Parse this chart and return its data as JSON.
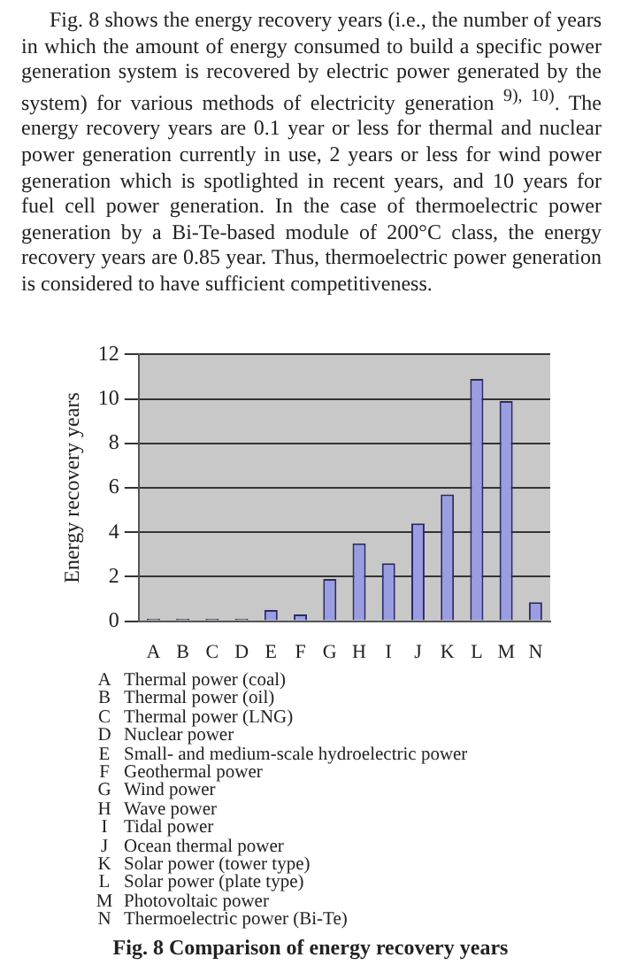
{
  "chart_data": {
    "type": "bar",
    "title": "Fig. 8  Comparison of energy recovery years",
    "ylabel": "Energy recovery years",
    "categories": [
      "A",
      "B",
      "C",
      "D",
      "E",
      "F",
      "G",
      "H",
      "I",
      "J",
      "K",
      "L",
      "M",
      "N"
    ],
    "values": [
      0.1,
      0.1,
      0.1,
      0.1,
      0.5,
      0.3,
      1.9,
      3.5,
      2.6,
      4.4,
      5.7,
      10.9,
      9.9,
      0.85
    ],
    "color": "#9a9ee0",
    "ylim": [
      0,
      12
    ],
    "yticks": [
      0,
      2,
      4,
      6,
      8,
      10,
      12
    ],
    "grid": "y",
    "annotations": [
      "Fig. 8 shows the energy recovery years (i.e., the number of years in which the amount of energy consumed to build a specific power generation system is recovered by electric power generated by the system) for various methods of electricity generation $^{9), 10)}$. The energy recovery years are 0.1 year or less for thermal and nuclear power generation currently in use, 2 years or less for wind power generation which is spotlighted in recent years, and 10 years for fuel cell power generation. In the case of thermoelectric power generation by a Bi-Te-based module of 200°C class, the energy recovery years are 0.85 year. Thus, thermoelectric power generation is considered to have sufficient competitiveness.",
      "A Thermal power (coal)",
      "B Thermal power (oil)",
      "C Thermal power (LNG)",
      "D Nuclear power",
      "E Small- and medium-scale hydroelectric power",
      "F Geothermal power",
      "G Wind power",
      "H Wave power",
      "I Tidal power",
      "J Ocean thermal power",
      "K Solar power (tower type)",
      "L Solar power (plate type)",
      "M Photovoltaic power",
      "N Thermoelectric power (Bi-Te)"
    ]
  }
}
